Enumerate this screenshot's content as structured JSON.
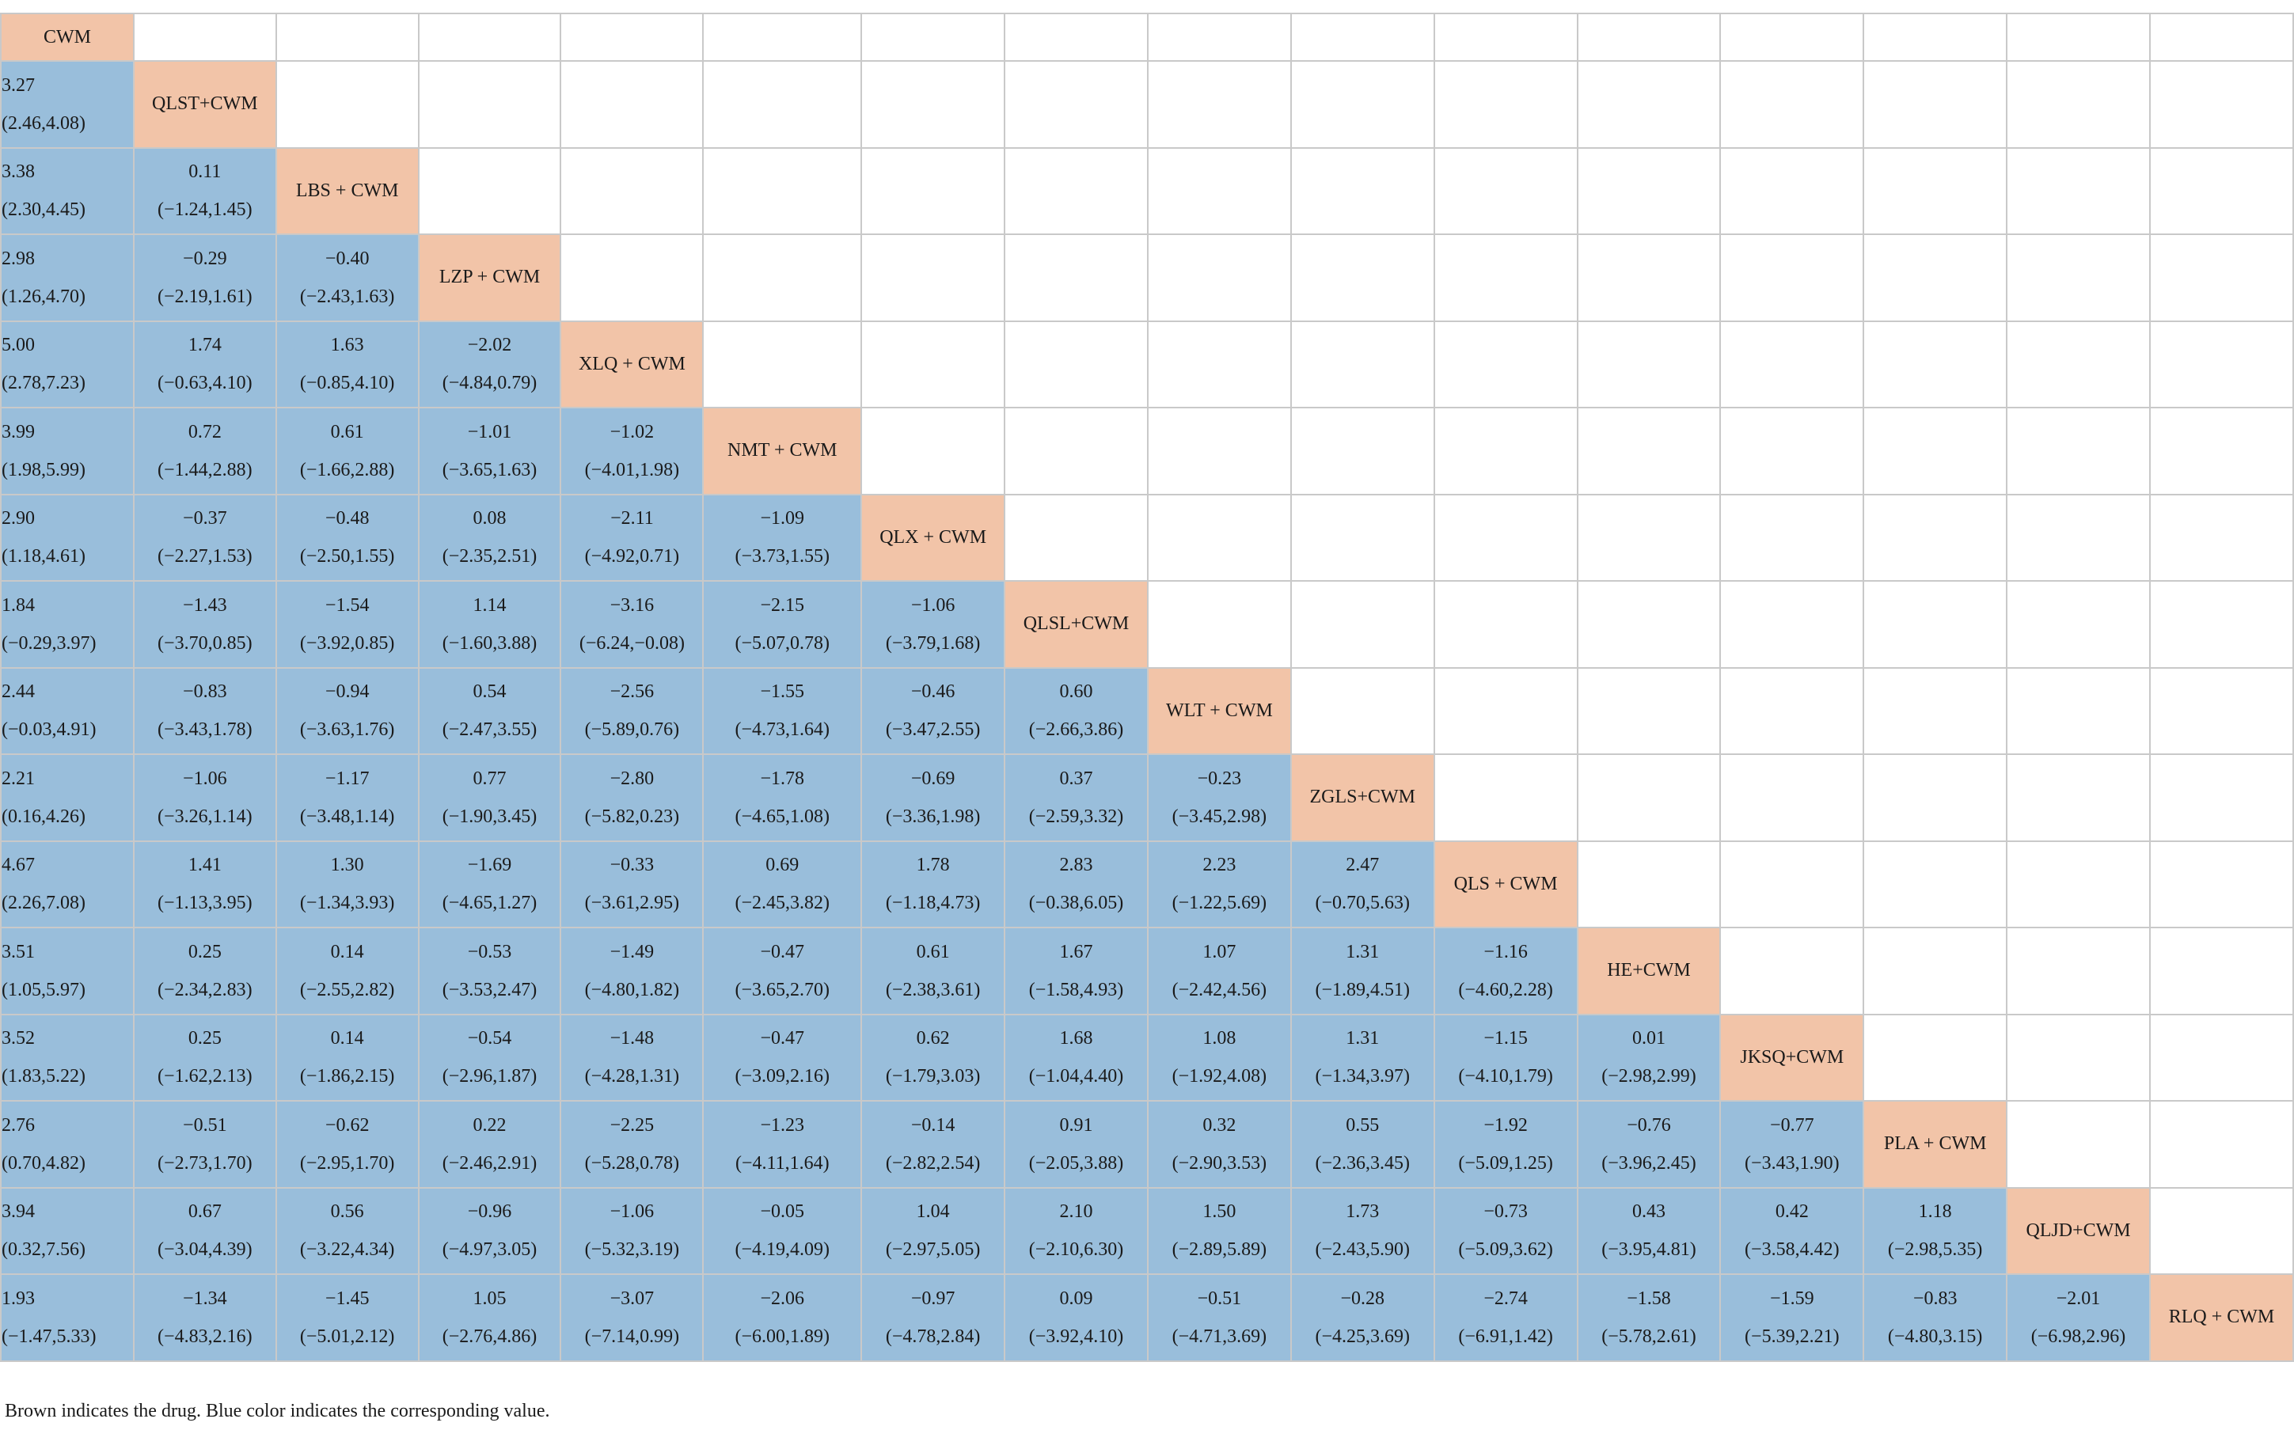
{
  "drugs": [
    "CWM",
    "QLST+CWM",
    "LBS + CWM",
    "LZP + CWM",
    "XLQ + CWM",
    "NMT + CWM",
    "QLX + CWM",
    "QLSL+CWM",
    "WLT + CWM",
    "ZGLS+CWM",
    "QLS + CWM",
    "HE+CWM",
    "JKSQ+CWM",
    "PLA + CWM",
    "QLJD+CWM",
    "RLQ + CWM"
  ],
  "values": [
    [],
    [
      [
        "3.27",
        "(2.46,4.08)"
      ]
    ],
    [
      [
        "3.38",
        "(2.30,4.45)"
      ],
      [
        "0.11",
        "(−1.24,1.45)"
      ]
    ],
    [
      [
        "2.98",
        "(1.26,4.70)"
      ],
      [
        "−0.29",
        "(−2.19,1.61)"
      ],
      [
        "−0.40",
        "(−2.43,1.63)"
      ]
    ],
    [
      [
        "5.00",
        "(2.78,7.23)"
      ],
      [
        "1.74",
        "(−0.63,4.10)"
      ],
      [
        "1.63",
        "(−0.85,4.10)"
      ],
      [
        "−2.02",
        "(−4.84,0.79)"
      ]
    ],
    [
      [
        "3.99",
        "(1.98,5.99)"
      ],
      [
        "0.72",
        "(−1.44,2.88)"
      ],
      [
        "0.61",
        "(−1.66,2.88)"
      ],
      [
        "−1.01",
        "(−3.65,1.63)"
      ],
      [
        "−1.02",
        "(−4.01,1.98)"
      ]
    ],
    [
      [
        "2.90",
        "(1.18,4.61)"
      ],
      [
        "−0.37",
        "(−2.27,1.53)"
      ],
      [
        "−0.48",
        "(−2.50,1.55)"
      ],
      [
        "0.08",
        "(−2.35,2.51)"
      ],
      [
        "−2.11",
        "(−4.92,0.71)"
      ],
      [
        "−1.09",
        "(−3.73,1.55)"
      ]
    ],
    [
      [
        "1.84",
        "(−0.29,3.97)"
      ],
      [
        "−1.43",
        "(−3.70,0.85)"
      ],
      [
        "−1.54",
        "(−3.92,0.85)"
      ],
      [
        "1.14",
        "(−1.60,3.88)"
      ],
      [
        "−3.16",
        "(−6.24,−0.08)"
      ],
      [
        "−2.15",
        "(−5.07,0.78)"
      ],
      [
        "−1.06",
        "(−3.79,1.68)"
      ]
    ],
    [
      [
        "2.44",
        "(−0.03,4.91)"
      ],
      [
        "−0.83",
        "(−3.43,1.78)"
      ],
      [
        "−0.94",
        "(−3.63,1.76)"
      ],
      [
        "0.54",
        "(−2.47,3.55)"
      ],
      [
        "−2.56",
        "(−5.89,0.76)"
      ],
      [
        "−1.55",
        "(−4.73,1.64)"
      ],
      [
        "−0.46",
        "(−3.47,2.55)"
      ],
      [
        "0.60",
        "(−2.66,3.86)"
      ]
    ],
    [
      [
        "2.21",
        "(0.16,4.26)"
      ],
      [
        "−1.06",
        "(−3.26,1.14)"
      ],
      [
        "−1.17",
        "(−3.48,1.14)"
      ],
      [
        "0.77",
        "(−1.90,3.45)"
      ],
      [
        "−2.80",
        "(−5.82,0.23)"
      ],
      [
        "−1.78",
        "(−4.65,1.08)"
      ],
      [
        "−0.69",
        "(−3.36,1.98)"
      ],
      [
        "0.37",
        "(−2.59,3.32)"
      ],
      [
        "−0.23",
        "(−3.45,2.98)"
      ]
    ],
    [
      [
        "4.67",
        "(2.26,7.08)"
      ],
      [
        "1.41",
        "(−1.13,3.95)"
      ],
      [
        "1.30",
        "(−1.34,3.93)"
      ],
      [
        "−1.69",
        "(−4.65,1.27)"
      ],
      [
        "−0.33",
        "(−3.61,2.95)"
      ],
      [
        "0.69",
        "(−2.45,3.82)"
      ],
      [
        "1.78",
        "(−1.18,4.73)"
      ],
      [
        "2.83",
        "(−0.38,6.05)"
      ],
      [
        "2.23",
        "(−1.22,5.69)"
      ],
      [
        "2.47",
        "(−0.70,5.63)"
      ]
    ],
    [
      [
        "3.51",
        "(1.05,5.97)"
      ],
      [
        "0.25",
        "(−2.34,2.83)"
      ],
      [
        "0.14",
        "(−2.55,2.82)"
      ],
      [
        "−0.53",
        "(−3.53,2.47)"
      ],
      [
        "−1.49",
        "(−4.80,1.82)"
      ],
      [
        "−0.47",
        "(−3.65,2.70)"
      ],
      [
        "0.61",
        "(−2.38,3.61)"
      ],
      [
        "1.67",
        "(−1.58,4.93)"
      ],
      [
        "1.07",
        "(−2.42,4.56)"
      ],
      [
        "1.31",
        "(−1.89,4.51)"
      ],
      [
        "−1.16",
        "(−4.60,2.28)"
      ]
    ],
    [
      [
        "3.52",
        "(1.83,5.22)"
      ],
      [
        "0.25",
        "(−1.62,2.13)"
      ],
      [
        "0.14",
        "(−1.86,2.15)"
      ],
      [
        "−0.54",
        "(−2.96,1.87)"
      ],
      [
        "−1.48",
        "(−4.28,1.31)"
      ],
      [
        "−0.47",
        "(−3.09,2.16)"
      ],
      [
        "0.62",
        "(−1.79,3.03)"
      ],
      [
        "1.68",
        "(−1.04,4.40)"
      ],
      [
        "1.08",
        "(−1.92,4.08)"
      ],
      [
        "1.31",
        "(−1.34,3.97)"
      ],
      [
        "−1.15",
        "(−4.10,1.79)"
      ],
      [
        "0.01",
        "(−2.98,2.99)"
      ]
    ],
    [
      [
        "2.76",
        "(0.70,4.82)"
      ],
      [
        "−0.51",
        "(−2.73,1.70)"
      ],
      [
        "−0.62",
        "(−2.95,1.70)"
      ],
      [
        "0.22",
        "(−2.46,2.91)"
      ],
      [
        "−2.25",
        "(−5.28,0.78)"
      ],
      [
        "−1.23",
        "(−4.11,1.64)"
      ],
      [
        "−0.14",
        "(−2.82,2.54)"
      ],
      [
        "0.91",
        "(−2.05,3.88)"
      ],
      [
        "0.32",
        "(−2.90,3.53)"
      ],
      [
        "0.55",
        "(−2.36,3.45)"
      ],
      [
        "−1.92",
        "(−5.09,1.25)"
      ],
      [
        "−0.76",
        "(−3.96,2.45)"
      ],
      [
        "−0.77",
        "(−3.43,1.90)"
      ]
    ],
    [
      [
        "3.94",
        "(0.32,7.56)"
      ],
      [
        "0.67",
        "(−3.04,4.39)"
      ],
      [
        "0.56",
        "(−3.22,4.34)"
      ],
      [
        "−0.96",
        "(−4.97,3.05)"
      ],
      [
        "−1.06",
        "(−5.32,3.19)"
      ],
      [
        "−0.05",
        "(−4.19,4.09)"
      ],
      [
        "1.04",
        "(−2.97,5.05)"
      ],
      [
        "2.10",
        "(−2.10,6.30)"
      ],
      [
        "1.50",
        "(−2.89,5.89)"
      ],
      [
        "1.73",
        "(−2.43,5.90)"
      ],
      [
        "−0.73",
        "(−5.09,3.62)"
      ],
      [
        "0.43",
        "(−3.95,4.81)"
      ],
      [
        "0.42",
        "(−3.58,4.42)"
      ],
      [
        "1.18",
        "(−2.98,5.35)"
      ]
    ],
    [
      [
        "1.93",
        "(−1.47,5.33)"
      ],
      [
        "−1.34",
        "(−4.83,2.16)"
      ],
      [
        "−1.45",
        "(−5.01,2.12)"
      ],
      [
        "1.05",
        "(−2.76,4.86)"
      ],
      [
        "−3.07",
        "(−7.14,0.99)"
      ],
      [
        "−2.06",
        "(−6.00,1.89)"
      ],
      [
        "−0.97",
        "(−4.78,2.84)"
      ],
      [
        "0.09",
        "(−3.92,4.10)"
      ],
      [
        "−0.51",
        "(−4.71,3.69)"
      ],
      [
        "−0.28",
        "(−4.25,3.69)"
      ],
      [
        "−2.74",
        "(−6.91,1.42)"
      ],
      [
        "−1.58",
        "(−5.78,2.61)"
      ],
      [
        "−1.59",
        "(−5.39,2.21)"
      ],
      [
        "−0.83",
        "(−4.80,3.15)"
      ],
      [
        "−2.01",
        "(−6.98,2.96)"
      ]
    ]
  ],
  "note": "Brown indicates the drug. Blue color indicates the corresponding value.",
  "colors": {
    "drug": "#f2c4a8",
    "value": "#99bedb",
    "grid": "#c9c9c9"
  }
}
